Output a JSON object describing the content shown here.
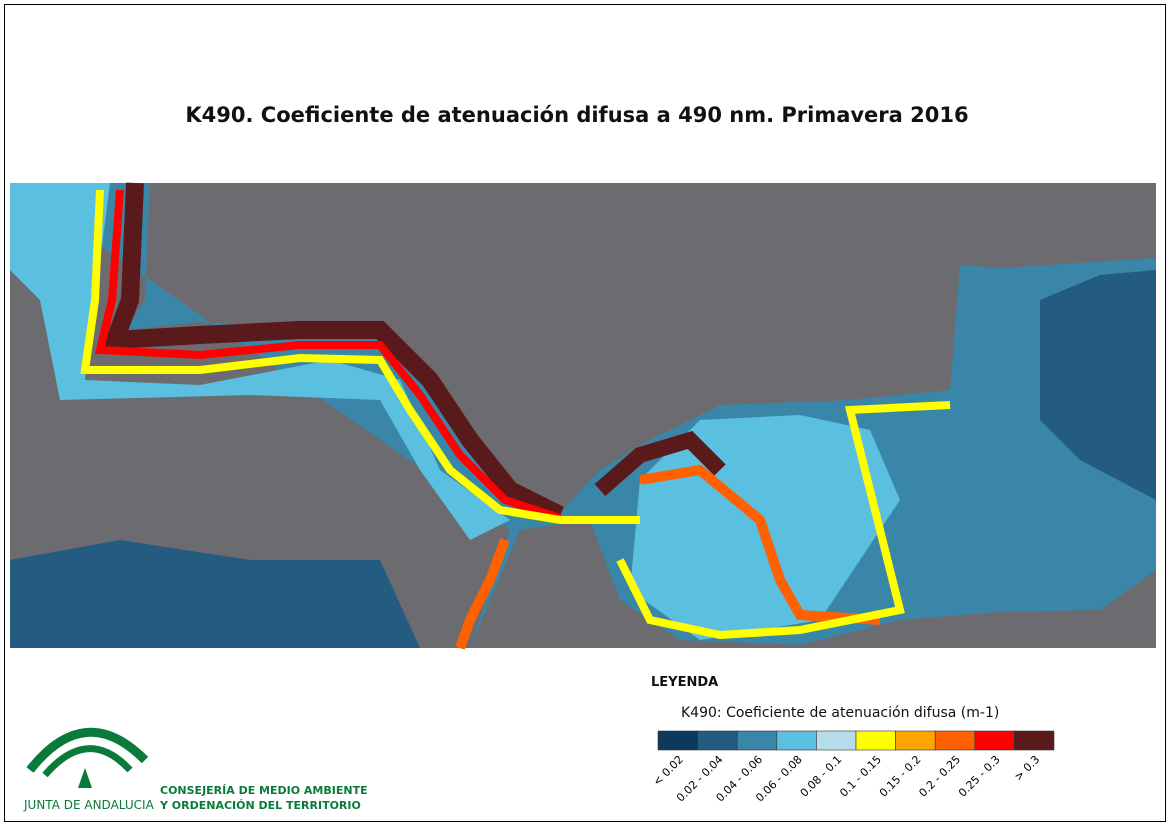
{
  "header": {
    "title": "K490. Coeficiente de atenuación difusa a 490 nm. Primavera 2016"
  },
  "legend": {
    "heading": "LEYENDA",
    "subtitle": "K490: Coeficiente de atenuación difusa (m-1)",
    "classes": [
      {
        "label": "< 0.02",
        "color": "#0d3a5c"
      },
      {
        "label": "0.02 - 0.04",
        "color": "#245b80"
      },
      {
        "label": "0.04 - 0.06",
        "color": "#3a86a8"
      },
      {
        "label": "0.06 - 0.08",
        "color": "#5bbfe0"
      },
      {
        "label": "0.08 - 0.1",
        "color": "#b5dde9"
      },
      {
        "label": "0.1 - 0.15",
        "color": "#ffff00"
      },
      {
        "label": "0.15 - 0.2",
        "color": "#ffa500"
      },
      {
        "label": "0.2 - 0.25",
        "color": "#ff6000"
      },
      {
        "label": "0.25 - 0.3",
        "color": "#ff0000"
      },
      {
        "label": "> 0.3",
        "color": "#5a1a1c"
      }
    ]
  },
  "logo": {
    "brand": "JUNTA DE ANDALUCIA",
    "line1": "CONSEJERÍA DE MEDIO AMBIENTE",
    "line2": "Y ORDENACIÓN DEL TERRITORIO"
  }
}
